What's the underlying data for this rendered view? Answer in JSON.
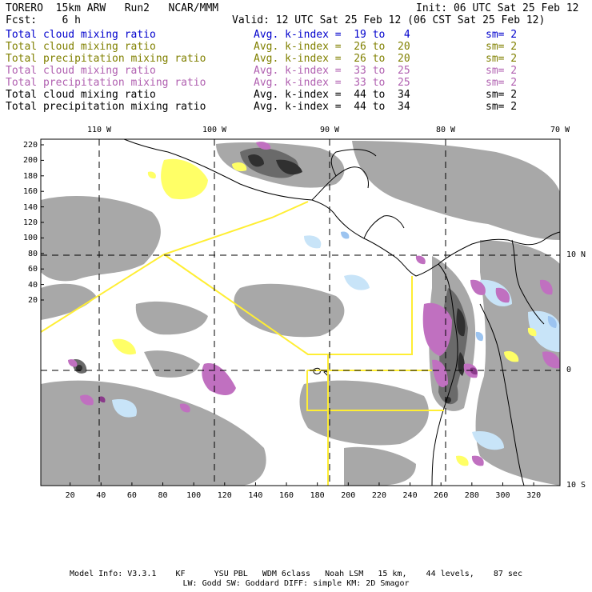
{
  "header": {
    "model": "TORERO  15km ARW   Run2   NCAR/MMM",
    "init": "Init: 06 UTC Sat 25 Feb 12",
    "forecast": "Fcst:    6 h",
    "valid": "Valid: 12 UTC Sat 25 Feb 12 (06 CST Sat 25 Feb 12)"
  },
  "legend": [
    {
      "name": "Total cloud mixing ratio",
      "avg": "Avg. k-index =  19 to   4",
      "sm": "sm= 2",
      "color": "#0000cc"
    },
    {
      "name": "Total cloud mixing ratio",
      "avg": "Avg. k-index =  26 to  20",
      "sm": "sm= 2",
      "color": "#808000"
    },
    {
      "name": "Total precipitation mixing ratio",
      "avg": "Avg. k-index =  26 to  20",
      "sm": "sm= 2",
      "color": "#808000"
    },
    {
      "name": "Total cloud mixing ratio",
      "avg": "Avg. k-index =  33 to  25",
      "sm": "sm= 2",
      "color": "#b060b0"
    },
    {
      "name": "Total precipitation mixing ratio",
      "avg": "Avg. k-index =  33 to  25",
      "sm": "sm= 2",
      "color": "#b060b0"
    },
    {
      "name": "Total cloud mixing ratio",
      "avg": "Avg. k-index =  44 to  34",
      "sm": "sm= 2",
      "color": "#000000"
    },
    {
      "name": "Total precipitation mixing ratio",
      "avg": "Avg. k-index =  44 to  34",
      "sm": "sm= 2",
      "color": "#000000"
    }
  ],
  "map": {
    "lon_labels": [
      "110 W",
      "100 W",
      "90 W",
      "80 W",
      "70 W"
    ],
    "lat_labels": [
      "10 N",
      "0",
      "10 S"
    ],
    "x_ticks": [
      "20",
      "40",
      "60",
      "80",
      "100",
      "120",
      "140",
      "160",
      "180",
      "200",
      "220",
      "240",
      "260",
      "280",
      "300",
      "320"
    ],
    "y_ticks": [
      "220",
      "200",
      "180",
      "160",
      "140",
      "120",
      "100",
      "80",
      "60",
      "40",
      "20"
    ],
    "colors": {
      "cloud_gray": "#a8a8a8",
      "cloud_dark": "#6a6a6a",
      "cloud_black": "#303030",
      "light_blue": "#c8e4f8",
      "blue": "#9cc4f0",
      "yellow": "#ffff66",
      "magenta": "#c070c0",
      "purple": "#8a3a8a",
      "boundary_yellow": "#ffee33"
    }
  },
  "footer": {
    "line1": "Model Info: V3.3.1    KF      YSU PBL   WDM 6class   Noah LSM   15 km,    44 levels,    87 sec",
    "line2": "LW: Godd SW: Goddard DIFF: simple KM: 2D Smagor"
  }
}
